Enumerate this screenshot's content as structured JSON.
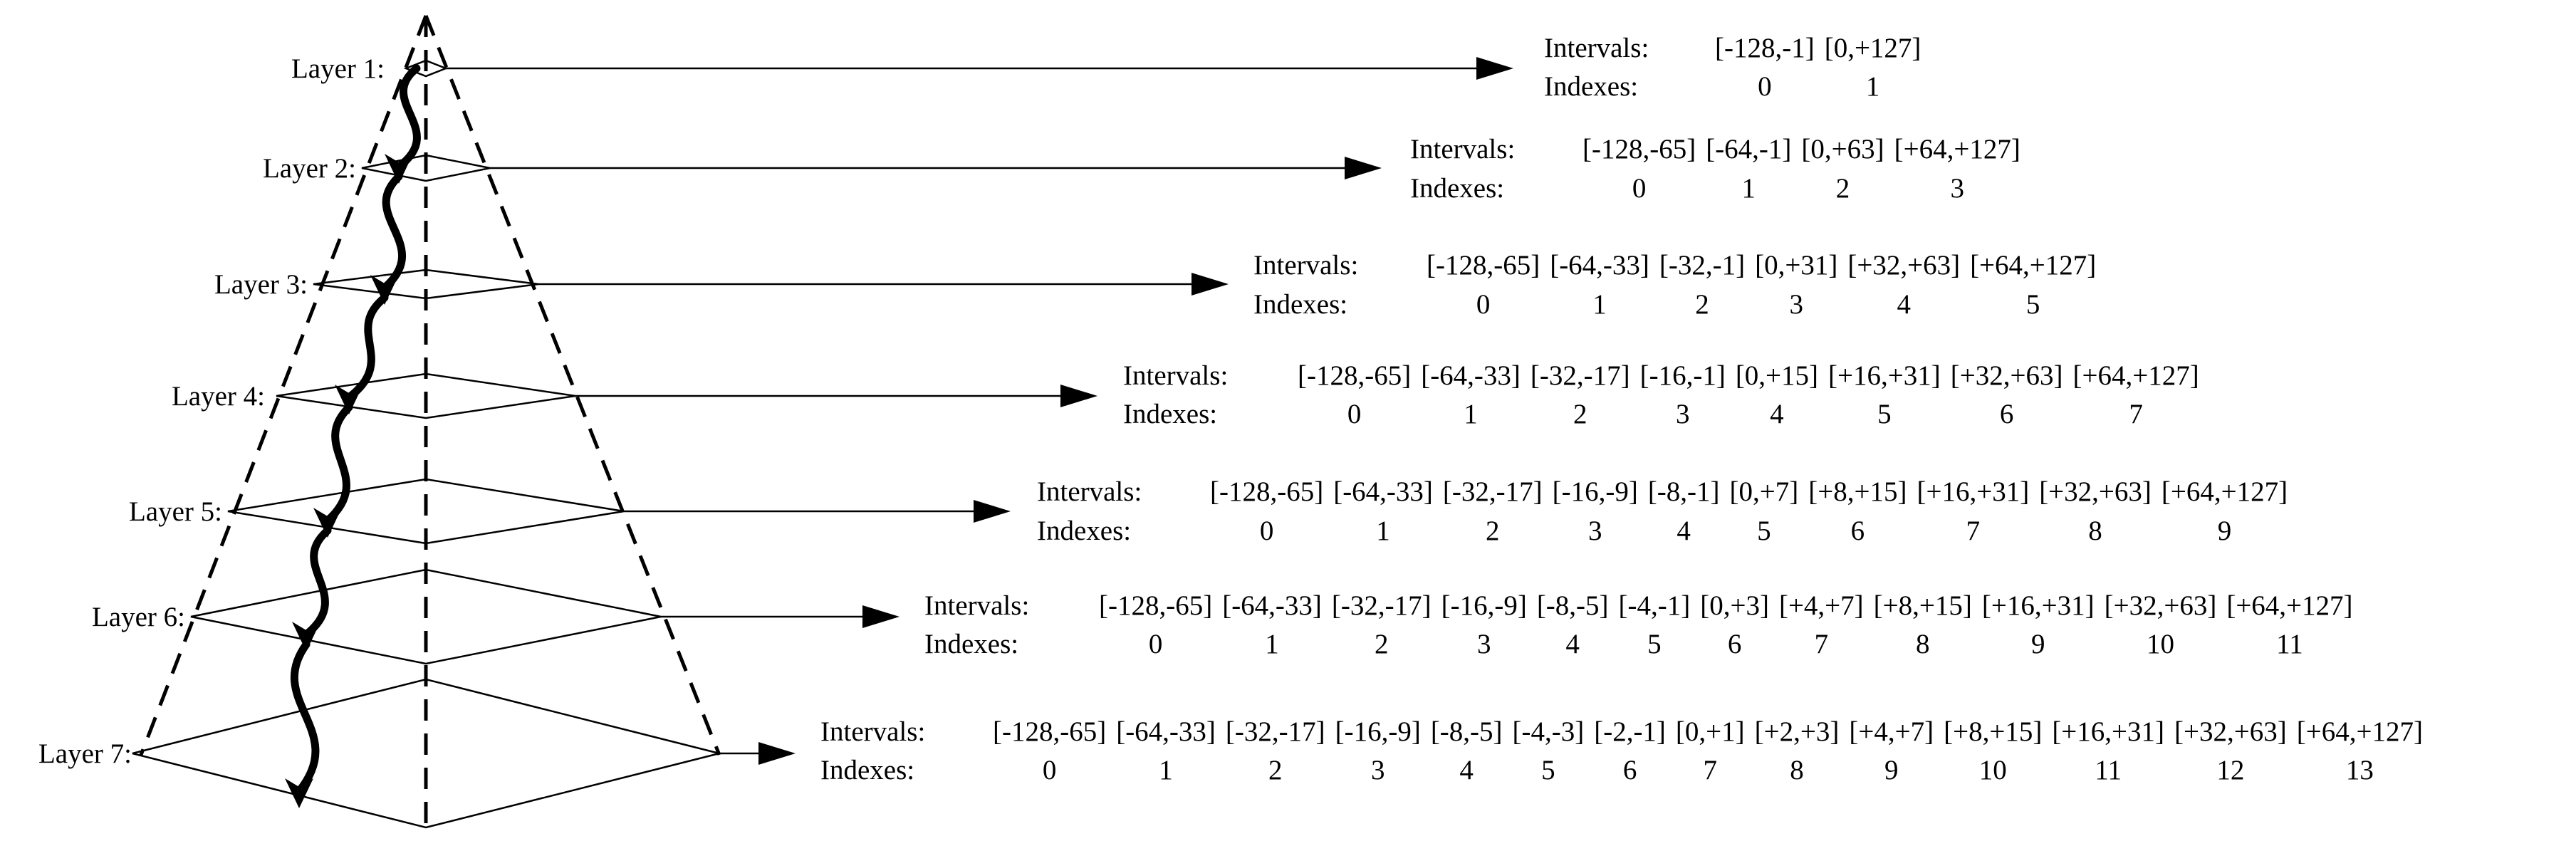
{
  "layers": [
    {
      "label": "Layer 1:",
      "intervals_label": "Intervals:",
      "indexes_label": "Indexes:",
      "intervals": [
        "[-128,-1]",
        "[0,+127]"
      ],
      "indexes": [
        "0",
        "1"
      ]
    },
    {
      "label": "Layer 2:",
      "intervals_label": "Intervals:",
      "indexes_label": "Indexes:",
      "intervals": [
        "[-128,-65]",
        "[-64,-1]",
        "[0,+63]",
        "[+64,+127]"
      ],
      "indexes": [
        "0",
        "1",
        "2",
        "3"
      ]
    },
    {
      "label": "Layer 3:",
      "intervals_label": "Intervals:",
      "indexes_label": "Indexes:",
      "intervals": [
        "[-128,-65]",
        "[-64,-33]",
        "[-32,-1]",
        "[0,+31]",
        "[+32,+63]",
        "[+64,+127]"
      ],
      "indexes": [
        "0",
        "1",
        "2",
        "3",
        "4",
        "5"
      ]
    },
    {
      "label": "Layer 4:",
      "intervals_label": "Intervals:",
      "indexes_label": "Indexes:",
      "intervals": [
        "[-128,-65]",
        "[-64,-33]",
        "[-32,-17]",
        "[-16,-1]",
        "[0,+15]",
        "[+16,+31]",
        "[+32,+63]",
        "[+64,+127]"
      ],
      "indexes": [
        "0",
        "1",
        "2",
        "3",
        "4",
        "5",
        "6",
        "7"
      ]
    },
    {
      "label": "Layer 5:",
      "intervals_label": "Intervals:",
      "indexes_label": "Indexes:",
      "intervals": [
        "[-128,-65]",
        "[-64,-33]",
        "[-32,-17]",
        "[-16,-9]",
        "[-8,-1]",
        "[0,+7]",
        "[+8,+15]",
        "[+16,+31]",
        "[+32,+63]",
        "[+64,+127]"
      ],
      "indexes": [
        "0",
        "1",
        "2",
        "3",
        "4",
        "5",
        "6",
        "7",
        "8",
        "9"
      ]
    },
    {
      "label": "Layer 6:",
      "intervals_label": "Intervals:",
      "indexes_label": "Indexes:",
      "intervals": [
        "[-128,-65]",
        "[-64,-33]",
        "[-32,-17]",
        "[-16,-9]",
        "[-8,-5]",
        "[-4,-1]",
        "[0,+3]",
        "[+4,+7]",
        "[+8,+15]",
        "[+16,+31]",
        "[+32,+63]",
        "[+64,+127]"
      ],
      "indexes": [
        "0",
        "1",
        "2",
        "3",
        "4",
        "5",
        "6",
        "7",
        "8",
        "9",
        "10",
        "11"
      ]
    },
    {
      "label": "Layer 7:",
      "intervals_label": "Intervals:",
      "indexes_label": "Indexes:",
      "intervals": [
        "[-128,-65]",
        "[-64,-33]",
        "[-32,-17]",
        "[-16,-9]",
        "[-8,-5]",
        "[-4,-3]",
        "[-2,-1]",
        "[0,+1]",
        "[+2,+3]",
        "[+4,+7]",
        "[+8,+15]",
        "[+16,+31]",
        "[+32,+63]",
        "[+64,+127]"
      ],
      "indexes": [
        "0",
        "1",
        "2",
        "3",
        "4",
        "5",
        "6",
        "7",
        "8",
        "9",
        "10",
        "11",
        "12",
        "13"
      ]
    }
  ]
}
